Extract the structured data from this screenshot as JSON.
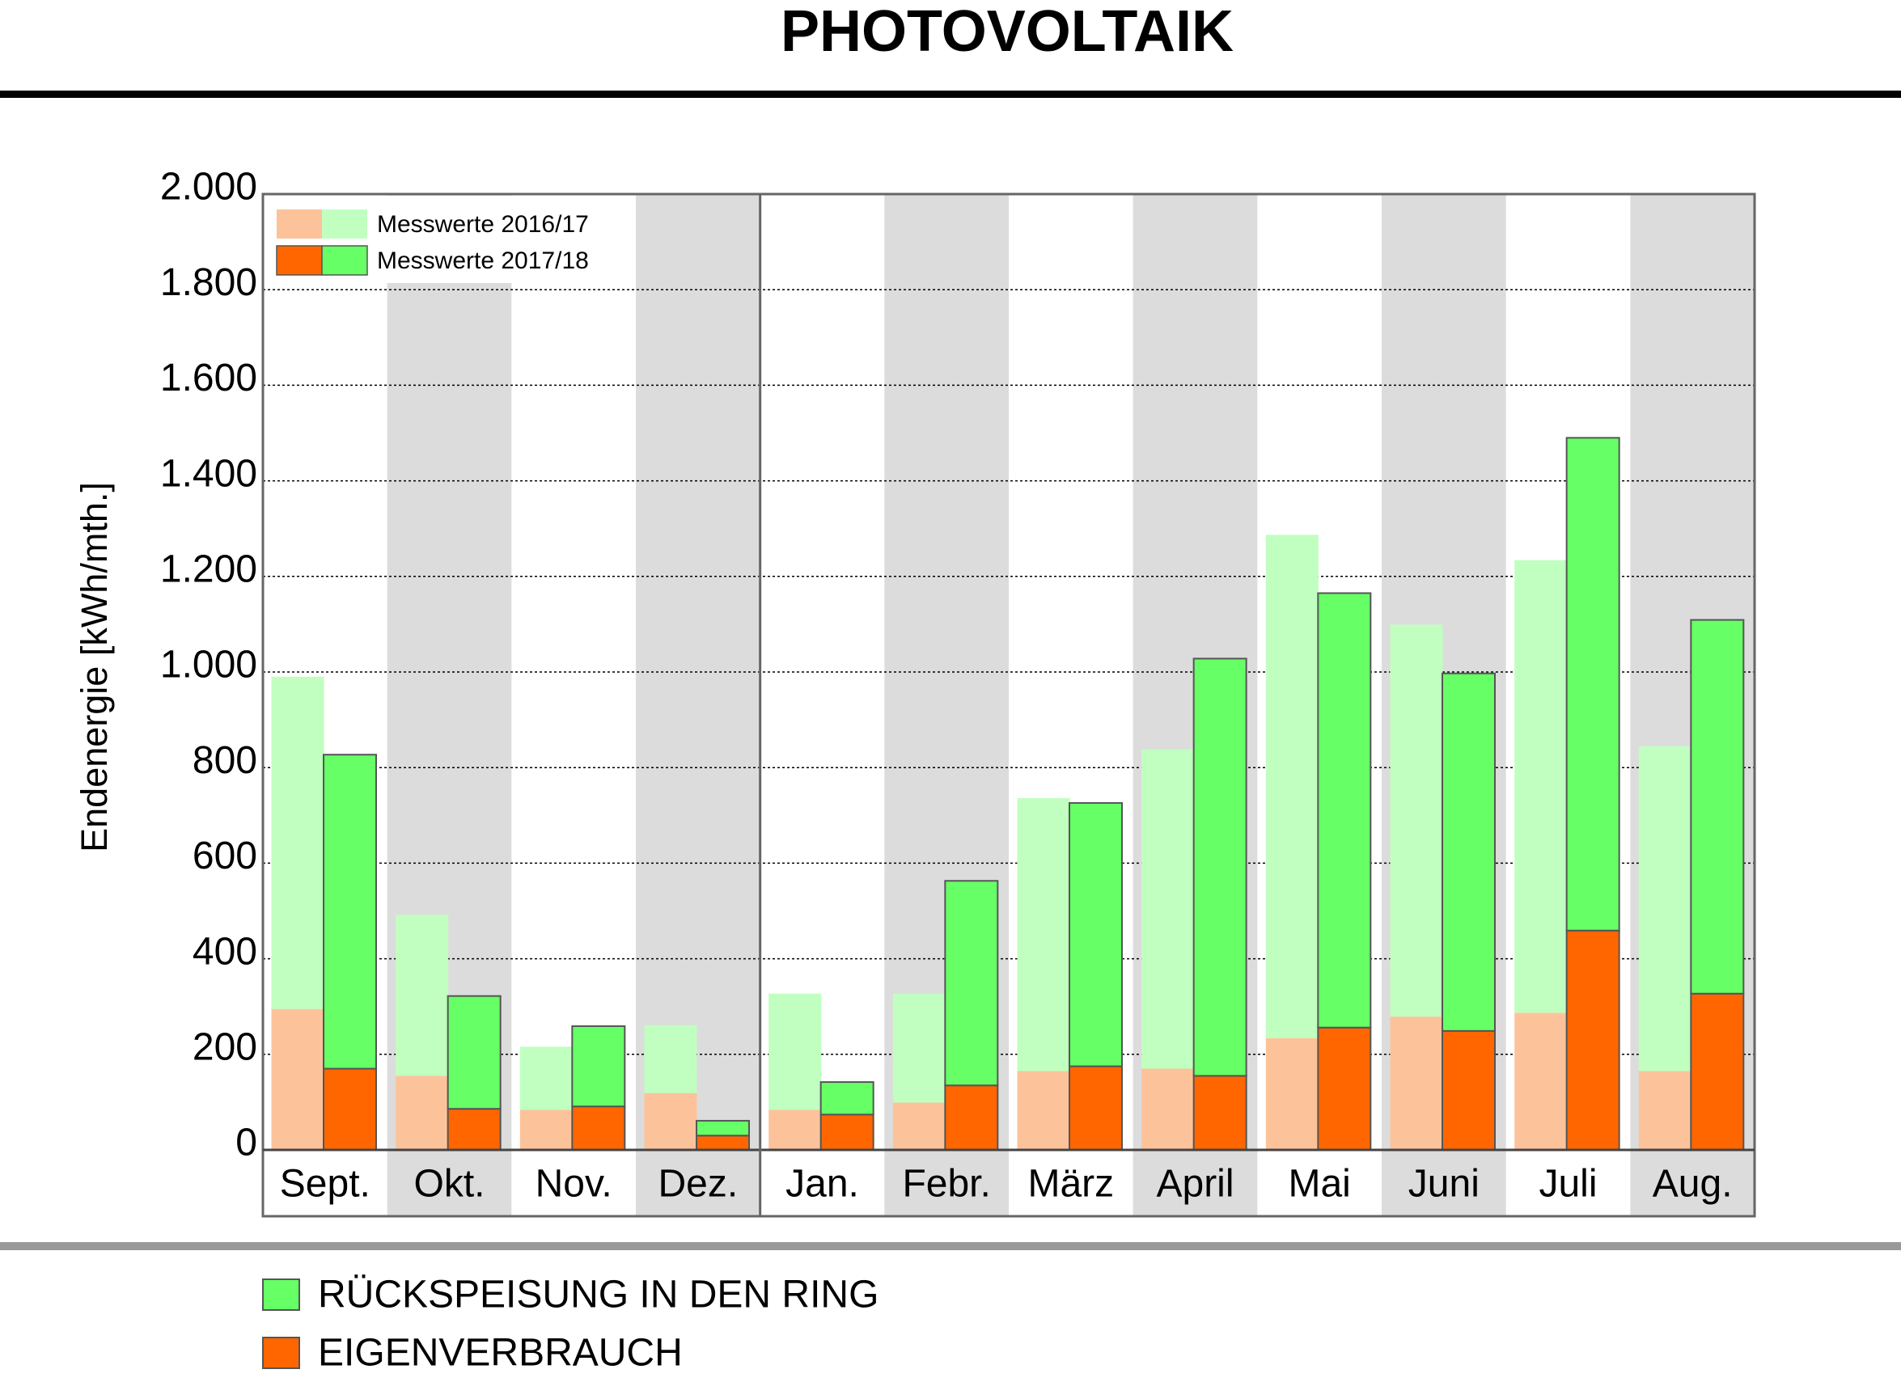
{
  "chart_data": {
    "type": "stacked-bar",
    "title": "PHOTOVOLTAIK",
    "y_label": "Endenergie [kWh/mth.]",
    "categories": [
      "Sept.",
      "Okt.",
      "Nov.",
      "Dez.",
      "Jan.",
      "Febr.",
      "März",
      "April",
      "Mai",
      "Juni",
      "Juli",
      "Aug."
    ],
    "ylim": [
      0,
      2000
    ],
    "yticks": [
      0,
      200,
      400,
      600,
      800,
      {
        "value": 1000,
        "label": "1.000"
      },
      {
        "value": 1200,
        "label": "1.200"
      },
      {
        "value": 1400,
        "label": "1.400"
      },
      {
        "value": 1600,
        "label": "1.600"
      },
      {
        "value": 1800,
        "label": "1.800"
      },
      {
        "value": 2000,
        "label": "2.000"
      }
    ],
    "grid": true,
    "series": [
      {
        "name": "Messwerte 2016/17",
        "eigenverbrauch": {
          "color": "#fcc39b",
          "values": [
            295,
            155,
            84,
            119,
            84,
            99,
            165,
            170,
            234,
            279,
            287,
            165
          ]
        },
        "rueckspeisung": {
          "color": "#c0ffc0",
          "values": [
            695,
            337,
            132,
            142,
            243,
            228,
            571,
            668,
            1053,
            820,
            947,
            680
          ]
        }
      },
      {
        "name": "Messwerte 2017/18",
        "eigenverbrauch": {
          "color": "#ff6600",
          "values": [
            170,
            86,
            91,
            30,
            74,
            135,
            175,
            155,
            256,
            249,
            459,
            327
          ]
        },
        "rueckspeisung": {
          "color": "#66ff66",
          "values": [
            657,
            236,
            168,
            31,
            68,
            428,
            551,
            873,
            909,
            748,
            1031,
            782
          ]
        }
      }
    ],
    "legend": [
      {
        "name": "RÜCKSPEISUNG IN DEN RING",
        "color": "#66ff66"
      },
      {
        "name": "EIGENVERBRAUCH",
        "color": "#ff6600"
      }
    ]
  }
}
